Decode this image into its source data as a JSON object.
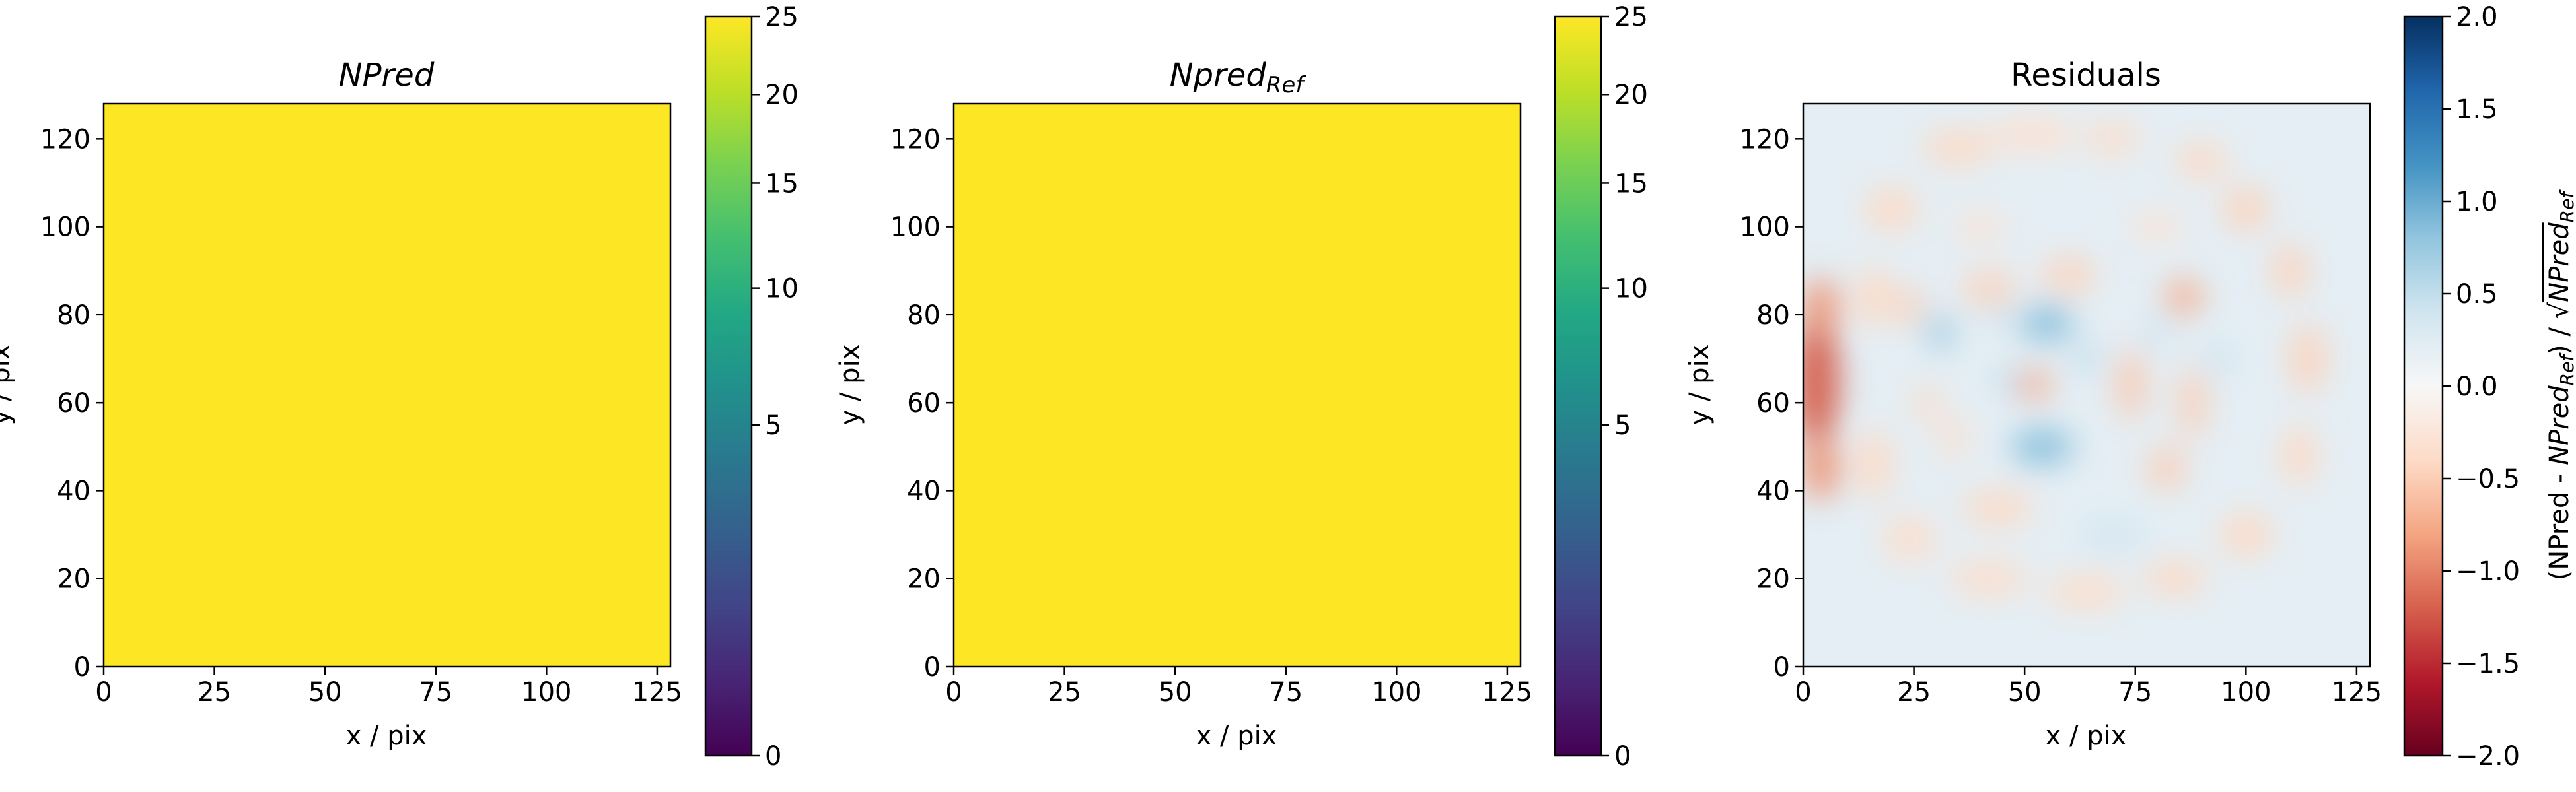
{
  "colors": {
    "viridis": [
      "#440154",
      "#482475",
      "#414487",
      "#355f8d",
      "#2a788e",
      "#21918c",
      "#22a884",
      "#44bf70",
      "#7ad151",
      "#bddf26",
      "#fde725"
    ],
    "rdbu": [
      "#67001f",
      "#b2182b",
      "#d6604d",
      "#f4a582",
      "#fddbc7",
      "#f7f7f7",
      "#d1e5f0",
      "#92c5de",
      "#4393c3",
      "#2166ac",
      "#053061"
    ]
  },
  "chart_data": [
    {
      "type": "heatmap",
      "title": "NPred",
      "title_style": "italic",
      "xlabel": "x / pix",
      "ylabel": "y / pix",
      "xlim": [
        0,
        128
      ],
      "ylim": [
        0,
        128
      ],
      "xticks": [
        0,
        25,
        50,
        75,
        100,
        125
      ],
      "yticks": [
        0,
        20,
        40,
        60,
        80,
        100,
        120
      ],
      "fill_value": 25,
      "colormap": "viridis",
      "colorbar": {
        "range": [
          0,
          25
        ],
        "scale": "sqrt",
        "ticks": [
          0,
          5,
          10,
          15,
          20,
          25
        ],
        "label": ""
      }
    },
    {
      "type": "heatmap",
      "title": "Npred",
      "title_subscript": "Ref",
      "title_style": "italic",
      "xlabel": "x / pix",
      "ylabel": "y / pix",
      "xlim": [
        0,
        128
      ],
      "ylim": [
        0,
        128
      ],
      "xticks": [
        0,
        25,
        50,
        75,
        100,
        125
      ],
      "yticks": [
        0,
        20,
        40,
        60,
        80,
        100,
        120
      ],
      "fill_value": 25,
      "colormap": "viridis",
      "colorbar": {
        "range": [
          0,
          25
        ],
        "scale": "sqrt",
        "ticks": [
          0,
          5,
          10,
          15,
          20,
          25
        ],
        "label": ""
      }
    },
    {
      "type": "heatmap",
      "title": "Residuals",
      "xlabel": "x / pix",
      "ylabel": "y / pix",
      "xlim": [
        0,
        128
      ],
      "ylim": [
        0,
        128
      ],
      "xticks": [
        0,
        25,
        50,
        75,
        100,
        125
      ],
      "yticks": [
        0,
        20,
        40,
        60,
        80,
        100,
        120
      ],
      "background_value": 0.2,
      "colormap": "RdBu",
      "colorbar": {
        "range": [
          -2,
          2
        ],
        "scale": "linear",
        "ticks": [
          2.0,
          1.5,
          1.0,
          0.5,
          0.0,
          -0.5,
          -1.0,
          -1.5,
          -2.0
        ],
        "tick_labels": [
          "2.0",
          "1.5",
          "1.0",
          "0.5",
          "0.0",
          "−0.5",
          "−1.0",
          "−1.5",
          "−2.0"
        ],
        "label_parts": [
          "(NPred - ",
          "NPred",
          "Ref",
          ") / ",
          "√",
          "NPred",
          "Ref"
        ]
      },
      "features": [
        {
          "x": 3,
          "y": 65,
          "rx": 5,
          "ry": 15,
          "value": -1.2
        },
        {
          "x": 4,
          "y": 45,
          "rx": 4,
          "ry": 7,
          "value": -0.9
        },
        {
          "x": 4,
          "y": 82,
          "rx": 4,
          "ry": 6,
          "value": -0.9
        },
        {
          "x": 35,
          "y": 118,
          "rx": 8,
          "ry": 4,
          "value": -0.4
        },
        {
          "x": 52,
          "y": 121,
          "rx": 10,
          "ry": 4,
          "value": -0.3
        },
        {
          "x": 70,
          "y": 120,
          "rx": 6,
          "ry": 4,
          "value": -0.35
        },
        {
          "x": 90,
          "y": 115,
          "rx": 6,
          "ry": 4,
          "value": -0.4
        },
        {
          "x": 100,
          "y": 104,
          "rx": 5,
          "ry": 5,
          "value": -0.45
        },
        {
          "x": 20,
          "y": 104,
          "rx": 6,
          "ry": 5,
          "value": -0.4
        },
        {
          "x": 110,
          "y": 90,
          "rx": 4,
          "ry": 6,
          "value": -0.45
        },
        {
          "x": 114,
          "y": 70,
          "rx": 4,
          "ry": 8,
          "value": -0.45
        },
        {
          "x": 112,
          "y": 48,
          "rx": 4,
          "ry": 7,
          "value": -0.4
        },
        {
          "x": 100,
          "y": 30,
          "rx": 6,
          "ry": 5,
          "value": -0.4
        },
        {
          "x": 84,
          "y": 20,
          "rx": 7,
          "ry": 4,
          "value": -0.4
        },
        {
          "x": 64,
          "y": 17,
          "rx": 9,
          "ry": 4,
          "value": -0.35
        },
        {
          "x": 42,
          "y": 20,
          "rx": 9,
          "ry": 4,
          "value": -0.35
        },
        {
          "x": 24,
          "y": 29,
          "rx": 6,
          "ry": 5,
          "value": -0.35
        },
        {
          "x": 16,
          "y": 46,
          "rx": 4,
          "ry": 8,
          "value": -0.4
        },
        {
          "x": 16,
          "y": 84,
          "rx": 4,
          "ry": 7,
          "value": -0.4
        },
        {
          "x": 24,
          "y": 82,
          "rx": 3,
          "ry": 4,
          "value": -0.5
        },
        {
          "x": 28,
          "y": 60,
          "rx": 3,
          "ry": 4,
          "value": -0.4
        },
        {
          "x": 42,
          "y": 86,
          "rx": 6,
          "ry": 4,
          "value": -0.45
        },
        {
          "x": 60,
          "y": 89,
          "rx": 6,
          "ry": 4,
          "value": -0.45
        },
        {
          "x": 86,
          "y": 84,
          "rx": 4,
          "ry": 4,
          "value": -0.75
        },
        {
          "x": 74,
          "y": 64,
          "rx": 3,
          "ry": 8,
          "value": -0.55
        },
        {
          "x": 88,
          "y": 60,
          "rx": 3,
          "ry": 8,
          "value": -0.5
        },
        {
          "x": 82,
          "y": 45,
          "rx": 4,
          "ry": 5,
          "value": -0.5
        },
        {
          "x": 52,
          "y": 64,
          "rx": 4,
          "ry": 3,
          "value": -0.8
        },
        {
          "x": 44,
          "y": 36,
          "rx": 8,
          "ry": 4,
          "value": -0.4
        },
        {
          "x": 34,
          "y": 52,
          "rx": 3,
          "ry": 5,
          "value": -0.35
        },
        {
          "x": 40,
          "y": 100,
          "rx": 6,
          "ry": 3,
          "value": -0.3
        },
        {
          "x": 80,
          "y": 100,
          "rx": 6,
          "ry": 3,
          "value": -0.3
        },
        {
          "x": 31,
          "y": 76,
          "rx": 3,
          "ry": 4,
          "value": 0.75
        },
        {
          "x": 55,
          "y": 78,
          "rx": 6,
          "ry": 4,
          "value": 0.85
        },
        {
          "x": 54,
          "y": 50,
          "rx": 7,
          "ry": 4,
          "value": 0.85
        },
        {
          "x": 64,
          "y": 70,
          "rx": 3,
          "ry": 3,
          "value": 0.55
        },
        {
          "x": 46,
          "y": 65,
          "rx": 3,
          "ry": 3,
          "value": 0.5
        },
        {
          "x": 44,
          "y": 80,
          "rx": 2,
          "ry": 3,
          "value": 0.5
        },
        {
          "x": 94,
          "y": 70,
          "rx": 4,
          "ry": 4,
          "value": 0.4
        },
        {
          "x": 70,
          "y": 30,
          "rx": 8,
          "ry": 4,
          "value": 0.35
        },
        {
          "x": 80,
          "y": 76,
          "rx": 3,
          "ry": 3,
          "value": 0.45
        }
      ]
    }
  ]
}
